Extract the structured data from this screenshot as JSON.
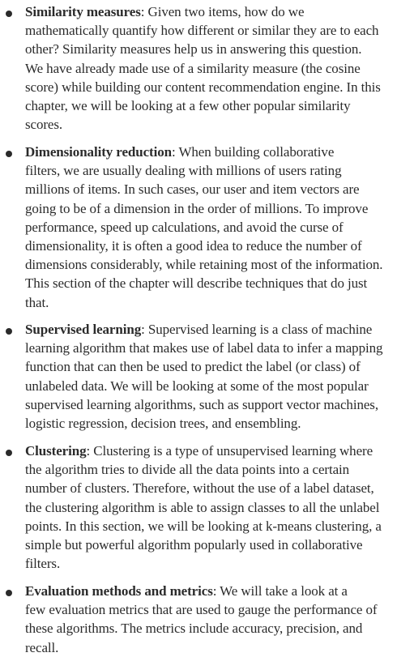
{
  "items": [
    {
      "term": "Similarity measures",
      "lines": [
        ": Given two items, how do we",
        "mathematically quantify how different or similar they are to each",
        "other? Similarity measures help us in answering this question.",
        "We have already made use of a similarity measure (the cosine",
        "score) while building our content recommendation engine. In this",
        "chapter, we will be looking at a few other popular similarity",
        "scores."
      ]
    },
    {
      "term": "Dimensionality reduction",
      "lines": [
        ": When building collaborative",
        "filters, we are usually dealing with millions of users rating",
        "millions of items. In such cases, our user and item vectors are",
        "going to be of a dimension in the order of millions. To improve",
        "performance, speed up calculations, and avoid the curse of",
        "dimensionality, it is often a good idea to reduce the number of",
        "dimensions considerably, while retaining most of the information.",
        "This section of the chapter will describe techniques that do just",
        "that."
      ]
    },
    {
      "term": "Supervised learning",
      "lines": [
        ": Supervised learning is a class of machine",
        "learning algorithm that makes use of label data to infer a mapping",
        "function that can then be used to predict the label (or class) of",
        "unlabeled data. We will be looking at some of the most popular",
        "supervised learning algorithms, such as support vector machines,",
        "logistic regression, decision trees, and ensembling."
      ]
    },
    {
      "term": "Clustering",
      "lines": [
        ": Clustering is a type of unsupervised learning where",
        "the algorithm tries to divide all the data points into a certain",
        "number of clusters. Therefore, without the use of a label dataset,",
        "the clustering algorithm is able to assign classes to all the unlabel",
        "points. In this section, we will be looking at k-means clustering, a",
        "simple but powerful algorithm popularly used in collaborative",
        "filters."
      ]
    },
    {
      "term": "Evaluation methods and metrics",
      "lines": [
        ": We will take a look at a",
        "few evaluation metrics that are used to gauge the performance of",
        "these algorithms. The metrics include accuracy, precision, and",
        "recall."
      ]
    }
  ]
}
